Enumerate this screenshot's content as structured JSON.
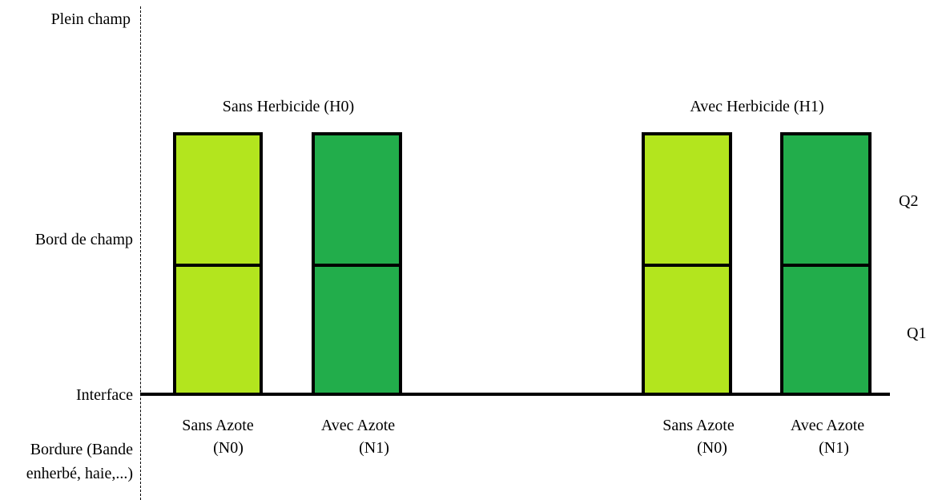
{
  "colors": {
    "sans_azote": "#B3E51E",
    "avec_azote": "#22AD4B",
    "outline": "#000000"
  },
  "zones": {
    "plein_champ": "Plein champ",
    "bord_de_champ": "Bord de champ",
    "interface": "Interface",
    "bordure_line1": "Bordure (Bande",
    "bordure_line2": "enherbé, haie,...)"
  },
  "quadrats": {
    "q2": "Q2",
    "q1": "Q1"
  },
  "groups": [
    {
      "title": "Sans Herbicide  (H0)",
      "plots": [
        {
          "label_line1": "Sans Azote",
          "label_line2": "(N0)",
          "color_key": "sans_azote"
        },
        {
          "label_line1": "Avec Azote",
          "label_line2": "(N1)",
          "color_key": "avec_azote"
        }
      ]
    },
    {
      "title": "Avec Herbicide (H1)",
      "plots": [
        {
          "label_line1": "Sans Azote",
          "label_line2": "(N0)",
          "color_key": "sans_azote"
        },
        {
          "label_line1": "Avec Azote",
          "label_line2": "(N1)",
          "color_key": "avec_azote"
        }
      ]
    }
  ]
}
